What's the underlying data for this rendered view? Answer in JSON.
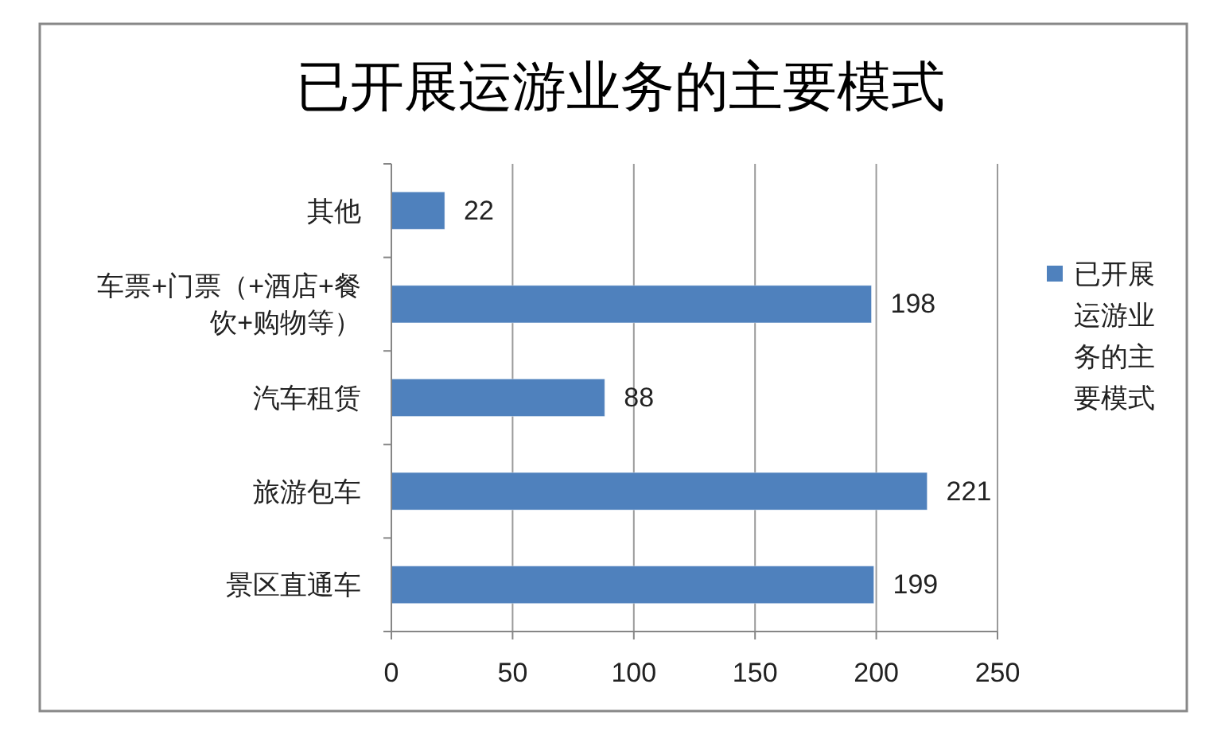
{
  "chart_data": {
    "type": "bar",
    "orientation": "horizontal",
    "title": "已开展运游业务的主要模式",
    "categories": [
      "其他",
      "车票+门票（+酒店+餐饮+购物等）",
      "汽车租赁",
      "旅游包车",
      "景区直通车"
    ],
    "series": [
      {
        "name": "已开展运游业务的主要模式",
        "color": "#4f81bd",
        "values": [
          22,
          198,
          88,
          221,
          199
        ]
      }
    ],
    "xlim": [
      0,
      250
    ],
    "xticks": [
      0,
      50,
      100,
      150,
      200,
      250
    ],
    "grid": "x",
    "legend": "right",
    "data_labels": true
  }
}
